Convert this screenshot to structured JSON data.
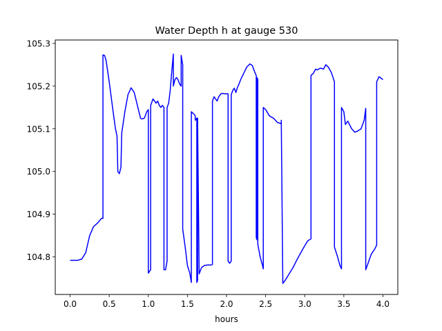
{
  "chart_data": {
    "type": "line",
    "title": "Water Depth h at gauge 530",
    "xlabel": "hours",
    "ylabel": "",
    "xlim": [
      -0.19,
      4.19
    ],
    "ylim": [
      104.712,
      105.308
    ],
    "grid": false,
    "xticks": [
      0.0,
      0.5,
      1.0,
      1.5,
      2.0,
      2.5,
      3.0,
      3.5,
      4.0
    ],
    "xtick_labels": [
      "0.0",
      "0.5",
      "1.0",
      "1.5",
      "2.0",
      "2.5",
      "3.0",
      "3.5",
      "4.0"
    ],
    "yticks": [
      104.8,
      104.9,
      105.0,
      105.1,
      105.2,
      105.3
    ],
    "ytick_labels": [
      "104.8",
      "104.9",
      "105.0",
      "105.1",
      "105.2",
      "105.3"
    ],
    "series": [
      {
        "color": "#0000ff",
        "x": [
          0.0,
          0.1,
          0.15,
          0.2,
          0.25,
          0.3,
          0.35,
          0.4,
          0.42,
          0.42,
          0.44,
          0.46,
          0.5,
          0.55,
          0.58,
          0.6,
          0.61,
          0.63,
          0.65,
          0.66,
          0.7,
          0.74,
          0.78,
          0.82,
          0.86,
          0.9,
          0.92,
          0.95,
          0.98,
          1.0,
          1.0,
          1.03,
          1.03,
          1.06,
          1.08,
          1.1,
          1.12,
          1.14,
          1.16,
          1.18,
          1.2,
          1.2,
          1.22,
          1.24,
          1.24,
          1.26,
          1.28,
          1.3,
          1.32,
          1.32,
          1.34,
          1.36,
          1.38,
          1.4,
          1.42,
          1.42,
          1.44,
          1.44,
          1.47,
          1.5,
          1.53,
          1.55,
          1.55,
          1.58,
          1.6,
          1.6,
          1.62,
          1.62,
          1.63,
          1.63,
          1.65,
          1.68,
          1.72,
          1.76,
          1.8,
          1.82,
          1.82,
          1.84,
          1.86,
          1.88,
          1.9,
          1.93,
          1.95,
          1.97,
          2.0,
          2.02,
          2.02,
          2.04,
          2.06,
          2.06,
          2.08,
          2.1,
          2.12,
          2.14,
          2.16,
          2.18,
          2.22,
          2.26,
          2.3,
          2.33,
          2.36,
          2.38,
          2.38,
          2.39,
          2.39,
          2.4,
          2.4,
          2.43,
          2.46,
          2.47,
          2.47,
          2.5,
          2.55,
          2.6,
          2.65,
          2.7,
          2.7,
          2.72,
          2.75,
          2.8,
          2.85,
          2.9,
          2.95,
          3.0,
          3.04,
          3.08,
          3.08,
          3.11,
          3.14,
          3.16,
          3.2,
          3.24,
          3.27,
          3.3,
          3.34,
          3.38,
          3.38,
          3.42,
          3.45,
          3.47,
          3.47,
          3.5,
          3.52,
          3.55,
          3.6,
          3.64,
          3.68,
          3.72,
          3.76,
          3.78,
          3.78,
          3.8,
          3.85,
          3.9,
          3.92,
          3.92,
          3.95,
          3.98,
          4.0
        ],
        "y": [
          104.792,
          104.792,
          104.795,
          104.81,
          104.85,
          104.871,
          104.879,
          104.89,
          104.89,
          105.273,
          105.272,
          105.26,
          105.21,
          105.14,
          105.1,
          105.083,
          105.0,
          104.995,
          105.01,
          105.09,
          105.14,
          105.18,
          105.196,
          105.185,
          105.155,
          105.125,
          105.123,
          105.125,
          105.14,
          105.145,
          104.762,
          104.77,
          105.155,
          105.17,
          105.165,
          105.16,
          105.165,
          105.155,
          105.15,
          105.155,
          105.15,
          104.77,
          104.77,
          104.79,
          105.15,
          105.16,
          105.19,
          105.235,
          105.275,
          105.2,
          105.215,
          105.22,
          105.215,
          105.205,
          105.2,
          105.272,
          105.25,
          104.865,
          104.825,
          104.78,
          104.762,
          104.74,
          105.14,
          105.135,
          105.13,
          105.12,
          105.125,
          104.74,
          104.745,
          105.125,
          104.76,
          104.775,
          104.78,
          104.781,
          104.781,
          104.782,
          105.165,
          105.175,
          105.17,
          105.165,
          105.175,
          105.182,
          105.183,
          105.182,
          105.182,
          105.182,
          104.79,
          104.785,
          104.79,
          105.18,
          105.19,
          105.195,
          105.185,
          105.197,
          105.205,
          105.215,
          105.23,
          105.245,
          105.252,
          105.248,
          105.233,
          105.225,
          104.845,
          104.84,
          105.22,
          105.215,
          104.83,
          104.8,
          104.78,
          104.772,
          105.15,
          105.145,
          105.13,
          105.125,
          105.115,
          105.112,
          105.12,
          104.738,
          104.745,
          104.76,
          104.775,
          104.793,
          104.81,
          104.826,
          104.838,
          104.842,
          105.225,
          105.23,
          105.24,
          105.238,
          105.242,
          105.24,
          105.25,
          105.245,
          105.232,
          105.21,
          104.823,
          104.8,
          104.78,
          104.772,
          105.15,
          105.14,
          105.11,
          105.118,
          105.1,
          105.092,
          105.095,
          105.1,
          105.12,
          105.148,
          104.77,
          104.78,
          104.806,
          104.82,
          104.828,
          105.21,
          105.222,
          105.218,
          105.215
        ]
      }
    ]
  }
}
